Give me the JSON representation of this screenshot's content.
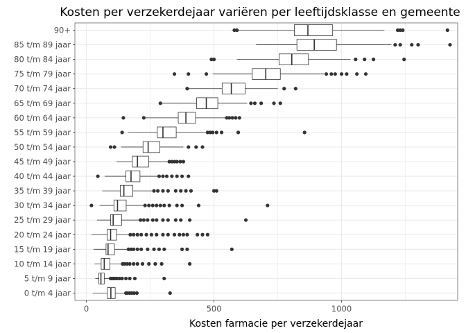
{
  "chart_data": {
    "type": "boxplot",
    "orientation": "horizontal",
    "title": "Kosten per verzekerdejaar variëren per leeftijdsklasse en gemeente",
    "xlabel": "Kosten farmacie per verzekerdejaar",
    "ylabel": "",
    "xlim": [
      -45,
      1455
    ],
    "x_ticks": [
      0,
      500,
      1000
    ],
    "x_minor_ticks": [
      250,
      750,
      1250
    ],
    "grid": true,
    "colors": {
      "box_fill": "#ffffff",
      "line": "#333333",
      "grid": "#ebebeb",
      "panel_border": "#333333",
      "outlier": "#333333"
    },
    "categories": [
      "0 t/m  4 jaar",
      "5 t/m  9 jaar",
      "10 t/m 14 jaar",
      "15 t/m 19 jaar",
      "20 t/m 24 jaar",
      "25 t/m 29 jaar",
      "30 t/m 34 jaar",
      "35 t/m 39 jaar",
      "40 t/m 44 jaar",
      "45 t/m 49 jaar",
      "50 t/m 54 jaar",
      "55 t/m 59 jaar",
      "60 t/m 64 jaar",
      "65 t/m 69 jaar",
      "70 t/m 74 jaar",
      "75 t/m 79 jaar",
      "80 t/m 84 jaar",
      "85 t/m 89 jaar",
      "90+"
    ],
    "boxes": [
      {
        "category": "0 t/m  4 jaar",
        "whisker_low": 25,
        "q1": 82,
        "median": 96,
        "q3": 113,
        "whisker_high": 148,
        "outliers": [
          155,
          162,
          170,
          178,
          187,
          198,
          328
        ]
      },
      {
        "category": "5 t/m  9 jaar",
        "whisker_low": 35,
        "q1": 49,
        "median": 57,
        "q3": 70,
        "whisker_high": 92,
        "outliers": [
          95,
          100,
          106,
          112,
          120,
          130,
          140,
          155,
          170,
          190,
          305
        ]
      },
      {
        "category": "10 t/m 14 jaar",
        "whisker_low": 32,
        "q1": 58,
        "median": 70,
        "q3": 92,
        "whisker_high": 138,
        "outliers": [
          142,
          150,
          160,
          170,
          185,
          200,
          220,
          245,
          270,
          295,
          405
        ]
      },
      {
        "category": "15 t/m 19 jaar",
        "whisker_low": 28,
        "q1": 77,
        "median": 85,
        "q3": 110,
        "whisker_high": 160,
        "outliers": [
          165,
          175,
          185,
          200,
          215,
          240,
          265,
          285,
          305,
          375,
          395,
          570
        ]
      },
      {
        "category": "20 t/m 24 jaar",
        "whisker_low": 20,
        "q1": 82,
        "median": 95,
        "q3": 118,
        "whisker_high": 168,
        "outliers": [
          172,
          185,
          200,
          215,
          235,
          255,
          275,
          300,
          320,
          345,
          365,
          380,
          395,
          435,
          455,
          475
        ]
      },
      {
        "category": "25 t/m 29 jaar",
        "whisker_low": 42,
        "q1": 95,
        "median": 105,
        "q3": 138,
        "whisker_high": 208,
        "outliers": [
          212,
          225,
          240,
          260,
          275,
          300,
          320,
          350,
          370,
          405,
          625
        ]
      },
      {
        "category": "30 t/m 34 jaar",
        "whisker_low": 52,
        "q1": 108,
        "median": 122,
        "q3": 156,
        "whisker_high": 225,
        "outliers": [
          20,
          230,
          245,
          260,
          275,
          290,
          305,
          325,
          355,
          375,
          440,
          710
        ]
      },
      {
        "category": "35 t/m 39 jaar",
        "whisker_low": 62,
        "q1": 133,
        "median": 147,
        "q3": 182,
        "whisker_high": 258,
        "outliers": [
          265,
          280,
          300,
          320,
          350,
          370,
          390,
          410,
          500,
          510
        ]
      },
      {
        "category": "40 t/m 44 jaar",
        "whisker_low": 72,
        "q1": 155,
        "median": 175,
        "q3": 210,
        "whisker_high": 280,
        "outliers": [
          45,
          285,
          300,
          315,
          335,
          355,
          375,
          400
        ]
      },
      {
        "category": "45 t/m 49 jaar",
        "whisker_low": 118,
        "q1": 180,
        "median": 200,
        "q3": 244,
        "whisker_high": 320,
        "outliers": [
          325,
          335,
          345,
          355,
          368,
          380
        ]
      },
      {
        "category": "50 t/m 54 jaar",
        "whisker_low": 136,
        "q1": 222,
        "median": 242,
        "q3": 288,
        "whisker_high": 380,
        "outliers": [
          95,
          110,
          400,
          430,
          455
        ]
      },
      {
        "category": "55 t/m 59 jaar",
        "whisker_low": 164,
        "q1": 278,
        "median": 300,
        "q3": 352,
        "whisker_high": 470,
        "outliers": [
          140,
          475,
          485,
          495,
          510,
          530,
          595,
          855
        ]
      },
      {
        "category": "60 t/m 64 jaar",
        "whisker_low": 222,
        "q1": 360,
        "median": 390,
        "q3": 428,
        "whisker_high": 545,
        "outliers": [
          145,
          225,
          550,
          560,
          572,
          585,
          600
        ]
      },
      {
        "category": "65 t/m 69 jaar",
        "whisker_low": 285,
        "q1": 432,
        "median": 470,
        "q3": 515,
        "whisker_high": 630,
        "outliers": [
          290,
          645,
          660,
          685,
          735,
          760
        ]
      },
      {
        "category": "70 t/m 74 jaar",
        "whisker_low": 395,
        "q1": 532,
        "median": 568,
        "q3": 622,
        "whisker_high": 750,
        "outliers": [
          395,
          775,
          820
        ]
      },
      {
        "category": "75 t/m 79 jaar",
        "whisker_low": 495,
        "q1": 650,
        "median": 703,
        "q3": 760,
        "whisker_high": 930,
        "outliers": [
          345,
          400,
          470,
          940,
          960,
          975,
          1000,
          1020,
          1060,
          1095
        ]
      },
      {
        "category": "80 t/m 84 jaar",
        "whisker_low": 590,
        "q1": 755,
        "median": 805,
        "q3": 870,
        "whisker_high": 1035,
        "outliers": [
          490,
          500,
          1055,
          1090,
          1125,
          1245
        ]
      },
      {
        "category": "85 t/m 89 jaar",
        "whisker_low": 665,
        "q1": 825,
        "median": 893,
        "q3": 980,
        "whisker_high": 1195,
        "outliers": [
          1210,
          1230,
          1275,
          1300,
          1425
        ]
      },
      {
        "category": "90+",
        "whisker_low": 570,
        "q1": 815,
        "median": 868,
        "q3": 965,
        "whisker_high": 1168,
        "outliers": [
          580,
          590,
          1220,
          1230,
          1240,
          1415
        ]
      }
    ]
  }
}
